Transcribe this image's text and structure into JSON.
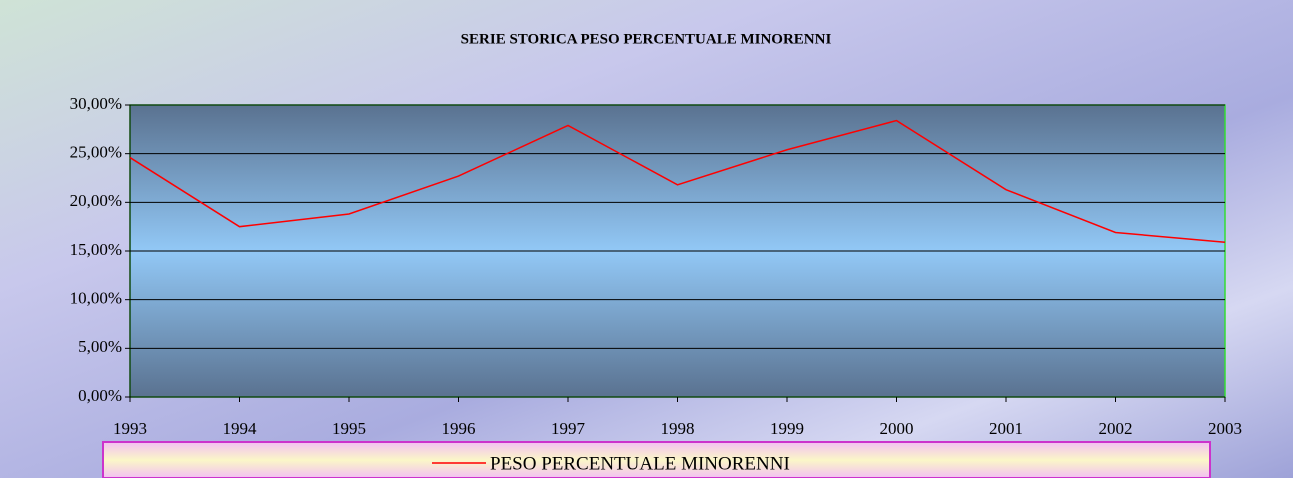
{
  "chart_data": {
    "type": "line",
    "title": "SERIE STORICA PESO PERCENTUALE MINORENNI",
    "categories": [
      "1993",
      "1994",
      "1995",
      "1996",
      "1997",
      "1998",
      "1999",
      "2000",
      "2001",
      "2002",
      "2003"
    ],
    "series": [
      {
        "name": "PESO PERCENTUALE MINORENNI",
        "color": "#ff0000",
        "values": [
          24.6,
          17.5,
          18.8,
          22.7,
          27.9,
          21.8,
          25.4,
          28.4,
          21.3,
          16.9,
          15.9
        ]
      }
    ],
    "ylim": [
      0,
      30
    ],
    "yticks": [
      {
        "value": 0,
        "label": "0,00%"
      },
      {
        "value": 5,
        "label": "5,00%"
      },
      {
        "value": 10,
        "label": "10,00%"
      },
      {
        "value": 15,
        "label": "15,00%"
      },
      {
        "value": 20,
        "label": "20,00%"
      },
      {
        "value": 25,
        "label": "25,00%"
      },
      {
        "value": 30,
        "label": "30,00%"
      }
    ],
    "grid": true,
    "legend": "bottom"
  }
}
